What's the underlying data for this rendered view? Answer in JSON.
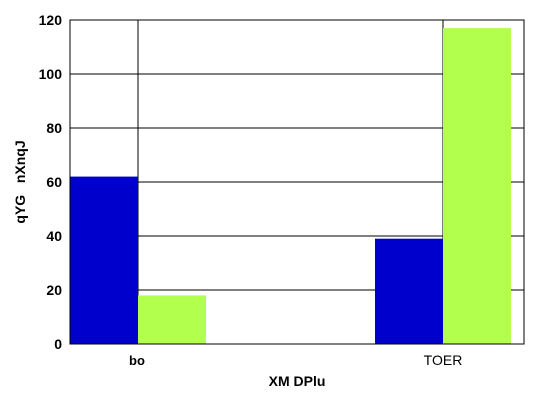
{
  "chart_data": {
    "type": "bar",
    "categories": [
      "bo",
      "TOER"
    ],
    "series": [
      {
        "values": [
          62,
          39
        ],
        "color": "#0000cc"
      },
      {
        "values": [
          18,
          117
        ],
        "color": "#b3ff4d"
      }
    ],
    "grouping": "per-category",
    "xlabel": "XM DPlu",
    "ylabel": "qYG   nXnqJ",
    "ylim": [
      0,
      120
    ],
    "yticks": [
      0,
      20,
      40,
      60,
      80,
      100,
      120
    ],
    "grid": true
  }
}
